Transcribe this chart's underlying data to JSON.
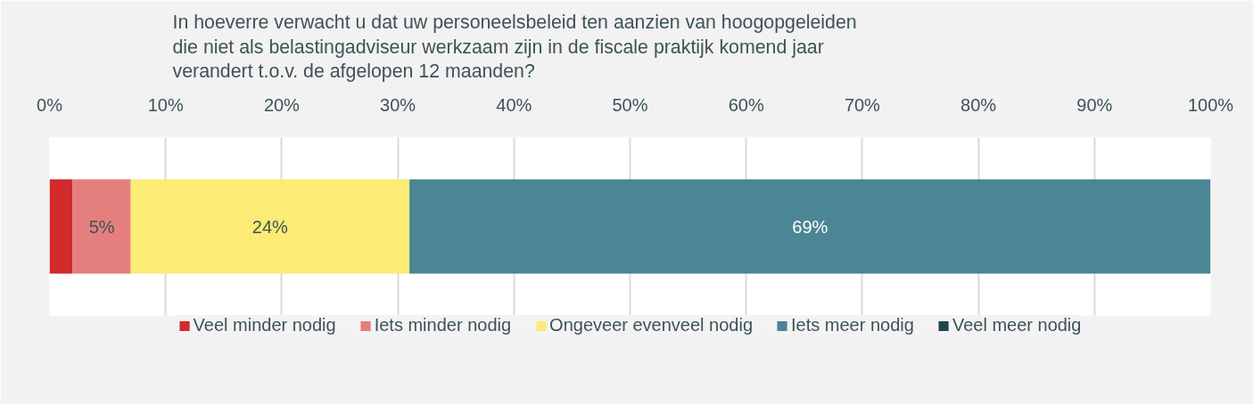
{
  "chart_data": {
    "type": "bar",
    "orientation": "horizontal",
    "stacked": true,
    "title": "In hoeverre verwacht u dat uw personeelsbeleid ten aanzien van hoogopgeleiden die niet als belastingadviseur werkzaam zijn in de fiscale praktijk komend jaar verandert t.o.v. de afgelopen 12 maanden?",
    "categories": [
      null
    ],
    "series": [
      {
        "name": "Veel minder nodig",
        "color": "#d22b2b",
        "values": [
          2
        ],
        "value_labels": [
          null
        ]
      },
      {
        "name": "Iets minder nodig",
        "color": "#e57f7d",
        "values": [
          5
        ],
        "value_labels": [
          "5%"
        ]
      },
      {
        "name": "Ongeveer evenveel nodig",
        "color": "#fceb74",
        "values": [
          24
        ],
        "value_labels": [
          "24%"
        ]
      },
      {
        "name": "Iets meer nodig",
        "color": "#4a8693",
        "values": [
          69
        ],
        "value_labels": [
          "69%"
        ]
      },
      {
        "name": "Veel meer nodig",
        "color": "#23434c",
        "values": [
          0
        ],
        "value_labels": [
          null
        ]
      }
    ],
    "xlim": [
      0,
      100
    ],
    "xticks": [
      {
        "value": 0,
        "label": "0%"
      },
      {
        "value": 10,
        "label": "10%"
      },
      {
        "value": 20,
        "label": "20%"
      },
      {
        "value": 30,
        "label": "30%"
      },
      {
        "value": 40,
        "label": "40%"
      },
      {
        "value": 50,
        "label": "50%"
      },
      {
        "value": 60,
        "label": "60%"
      },
      {
        "value": 70,
        "label": "70%"
      },
      {
        "value": 80,
        "label": "80%"
      },
      {
        "value": 90,
        "label": "90%"
      },
      {
        "value": 100,
        "label": "100%"
      }
    ],
    "grid": "x",
    "legend": "bottom"
  }
}
